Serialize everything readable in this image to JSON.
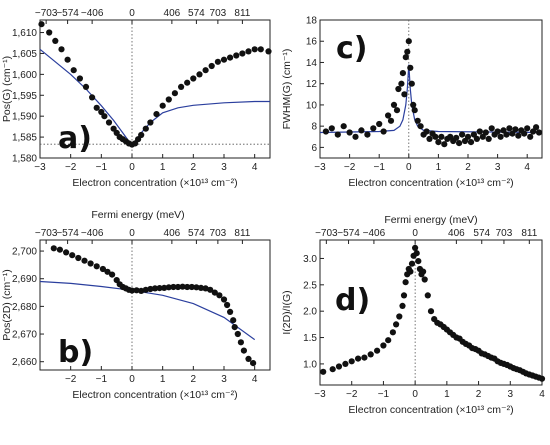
{
  "chart_data": [
    {
      "id": "a",
      "type": "scatter",
      "panel_label": "a)",
      "xlabel": "Electron concentration (×10¹³ cm⁻²)",
      "ylabel": "Pos(G) (cm⁻¹)",
      "top_xlabel": "",
      "xlim": [
        -3,
        4.5
      ],
      "ylim": [
        1580,
        1613
      ],
      "xticks": [
        -3,
        -2,
        -1,
        0,
        1,
        2,
        3,
        4
      ],
      "yticks": [
        1580,
        1585,
        1590,
        1595,
        1600,
        1605,
        1610
      ],
      "ytick_labels": [
        "1,580",
        "1,585",
        "1,590",
        "1,595",
        "1,600",
        "1,605",
        "1,610"
      ],
      "top_ticks": [
        -2.8,
        -2.1,
        -1.3,
        0,
        1.3,
        2.1,
        2.8,
        3.6
      ],
      "top_tick_labels": [
        "−703",
        "−574",
        "−406",
        "0",
        "406",
        "574",
        "703",
        "811"
      ],
      "vline_x": 0,
      "hline_y": 1583.3,
      "points": [
        [
          -2.95,
          1612
        ],
        [
          -2.7,
          1610
        ],
        [
          -2.5,
          1608
        ],
        [
          -2.3,
          1606
        ],
        [
          -2.1,
          1603.5
        ],
        [
          -1.9,
          1601
        ],
        [
          -1.7,
          1599
        ],
        [
          -1.5,
          1597
        ],
        [
          -1.3,
          1594.5
        ],
        [
          -1.15,
          1592
        ],
        [
          -1.0,
          1591
        ],
        [
          -0.9,
          1590
        ],
        [
          -0.75,
          1588.5
        ],
        [
          -0.6,
          1587
        ],
        [
          -0.5,
          1586
        ],
        [
          -0.4,
          1585
        ],
        [
          -0.3,
          1584.5
        ],
        [
          -0.2,
          1584
        ],
        [
          -0.1,
          1583.5
        ],
        [
          0.0,
          1583.2
        ],
        [
          0.1,
          1583.5
        ],
        [
          0.2,
          1584.5
        ],
        [
          0.3,
          1585.5
        ],
        [
          0.45,
          1587
        ],
        [
          0.6,
          1588.5
        ],
        [
          0.8,
          1590.5
        ],
        [
          1.0,
          1592.5
        ],
        [
          1.2,
          1594
        ],
        [
          1.4,
          1595.5
        ],
        [
          1.6,
          1597
        ],
        [
          1.8,
          1598
        ],
        [
          2.0,
          1599
        ],
        [
          2.2,
          1600
        ],
        [
          2.4,
          1601
        ],
        [
          2.6,
          1602
        ],
        [
          2.8,
          1603
        ],
        [
          3.0,
          1603.5
        ],
        [
          3.2,
          1604
        ],
        [
          3.4,
          1604.5
        ],
        [
          3.6,
          1605
        ],
        [
          3.8,
          1605.5
        ],
        [
          4.0,
          1606
        ],
        [
          4.2,
          1606
        ],
        [
          4.45,
          1605.5
        ]
      ],
      "line": [
        [
          -3.0,
          1606
        ],
        [
          -2.5,
          1603
        ],
        [
          -2.0,
          1600
        ],
        [
          -1.5,
          1596.5
        ],
        [
          -1.0,
          1592.5
        ],
        [
          -0.6,
          1589
        ],
        [
          -0.3,
          1586
        ],
        [
          -0.1,
          1584
        ],
        [
          0.0,
          1583.2
        ],
        [
          0.1,
          1584
        ],
        [
          0.3,
          1586
        ],
        [
          0.6,
          1588.5
        ],
        [
          1.0,
          1590.8
        ],
        [
          1.5,
          1592
        ],
        [
          2.0,
          1592.6
        ],
        [
          3.0,
          1593.2
        ],
        [
          4.0,
          1593.5
        ],
        [
          4.5,
          1593.5
        ]
      ],
      "marker_color": "#111111",
      "line_color": "#2b3f9e"
    },
    {
      "id": "c",
      "type": "scatter",
      "panel_label": "c)",
      "xlabel": "Electron concentration (×10¹³ cm⁻²)",
      "ylabel": "FWHM(G) (cm⁻¹)",
      "top_xlabel": "",
      "xlim": [
        -3,
        4.5
      ],
      "ylim": [
        5,
        18
      ],
      "xticks": [
        -3,
        -2,
        -1,
        0,
        1,
        2,
        3,
        4
      ],
      "yticks": [
        6,
        8,
        10,
        12,
        14,
        16,
        18
      ],
      "ytick_labels": [
        "6",
        "8",
        "10",
        "12",
        "14",
        "16",
        "18"
      ],
      "top_ticks": [],
      "top_tick_labels": [],
      "vline_x": 0,
      "hline_y": null,
      "points": [
        [
          -2.8,
          7.5
        ],
        [
          -2.6,
          7.8
        ],
        [
          -2.4,
          7.2
        ],
        [
          -2.2,
          8.0
        ],
        [
          -2.0,
          7.4
        ],
        [
          -1.8,
          7.0
        ],
        [
          -1.6,
          7.6
        ],
        [
          -1.4,
          7.2
        ],
        [
          -1.2,
          7.8
        ],
        [
          -1.0,
          8.2
        ],
        [
          -0.85,
          7.5
        ],
        [
          -0.7,
          9.0
        ],
        [
          -0.6,
          8.5
        ],
        [
          -0.5,
          10.0
        ],
        [
          -0.4,
          9.5
        ],
        [
          -0.35,
          11.5
        ],
        [
          -0.25,
          12.0
        ],
        [
          -0.2,
          13.0
        ],
        [
          -0.15,
          11.0
        ],
        [
          -0.1,
          14.5
        ],
        [
          -0.05,
          15.0
        ],
        [
          0.0,
          16.0
        ],
        [
          0.05,
          13.5
        ],
        [
          0.1,
          12.0
        ],
        [
          0.15,
          10.0
        ],
        [
          0.2,
          9.5
        ],
        [
          0.3,
          8.5
        ],
        [
          0.4,
          8.0
        ],
        [
          0.5,
          7.2
        ],
        [
          0.6,
          7.5
        ],
        [
          0.7,
          6.8
        ],
        [
          0.8,
          7.3
        ],
        [
          0.9,
          7.0
        ],
        [
          1.0,
          6.5
        ],
        [
          1.1,
          7.0
        ],
        [
          1.2,
          6.3
        ],
        [
          1.3,
          6.8
        ],
        [
          1.4,
          7.0
        ],
        [
          1.5,
          6.6
        ],
        [
          1.6,
          6.9
        ],
        [
          1.7,
          6.4
        ],
        [
          1.8,
          7.2
        ],
        [
          1.9,
          6.6
        ],
        [
          2.0,
          7.0
        ],
        [
          2.1,
          6.5
        ],
        [
          2.2,
          7.2
        ],
        [
          2.3,
          6.8
        ],
        [
          2.4,
          7.5
        ],
        [
          2.5,
          7.0
        ],
        [
          2.6,
          7.4
        ],
        [
          2.7,
          6.8
        ],
        [
          2.8,
          7.8
        ],
        [
          2.9,
          7.2
        ],
        [
          3.0,
          7.5
        ],
        [
          3.1,
          7.0
        ],
        [
          3.2,
          7.6
        ],
        [
          3.3,
          7.2
        ],
        [
          3.4,
          7.8
        ],
        [
          3.5,
          7.3
        ],
        [
          3.6,
          7.7
        ],
        [
          3.7,
          7.1
        ],
        [
          3.8,
          7.6
        ],
        [
          3.9,
          7.3
        ],
        [
          4.0,
          7.8
        ],
        [
          4.1,
          7.0
        ],
        [
          4.2,
          7.5
        ],
        [
          4.3,
          7.9
        ],
        [
          4.4,
          7.4
        ]
      ],
      "line": [
        [
          -3.0,
          7.4
        ],
        [
          -1.0,
          7.5
        ],
        [
          -0.5,
          7.6
        ],
        [
          -0.3,
          8.0
        ],
        [
          -0.2,
          8.6
        ],
        [
          -0.1,
          10.0
        ],
        [
          -0.05,
          11.5
        ],
        [
          0.0,
          13.8
        ],
        [
          0.05,
          11.5
        ],
        [
          0.1,
          10.0
        ],
        [
          0.2,
          8.6
        ],
        [
          0.3,
          8.0
        ],
        [
          0.5,
          7.6
        ],
        [
          1.0,
          7.5
        ],
        [
          4.5,
          7.4
        ]
      ],
      "marker_color": "#111111",
      "line_color": "#2b3f9e"
    },
    {
      "id": "b",
      "type": "scatter",
      "panel_label": "b)",
      "xlabel": "Electron concentration (×10¹³ cm⁻²)",
      "ylabel": "Pos(2D) (cm⁻¹)",
      "top_xlabel": "Fermi energy (meV)",
      "xlim": [
        -3,
        4.5
      ],
      "ylim": [
        2657,
        2704
      ],
      "xticks": [
        -2,
        -1,
        0,
        1,
        2,
        3,
        4
      ],
      "yticks": [
        2660,
        2670,
        2680,
        2690,
        2700
      ],
      "ytick_labels": [
        "2,660",
        "2,670",
        "2,680",
        "2,690",
        "2,700"
      ],
      "top_ticks": [
        -2.8,
        -2.1,
        -1.3,
        0,
        1.3,
        2.1,
        2.8,
        3.6
      ],
      "top_tick_labels": [
        "−703",
        "−574",
        "−406",
        "0",
        "406",
        "574",
        "703",
        "811"
      ],
      "vline_x": 0,
      "hline_y": null,
      "points": [
        [
          -2.55,
          2701
        ],
        [
          -2.35,
          2700.5
        ],
        [
          -2.15,
          2699.5
        ],
        [
          -1.95,
          2698.5
        ],
        [
          -1.75,
          2697.5
        ],
        [
          -1.55,
          2696.5
        ],
        [
          -1.35,
          2695.5
        ],
        [
          -1.15,
          2694.5
        ],
        [
          -0.95,
          2693.5
        ],
        [
          -0.8,
          2692.5
        ],
        [
          -0.65,
          2691.5
        ],
        [
          -0.5,
          2689.5
        ],
        [
          -0.4,
          2688
        ],
        [
          -0.3,
          2687
        ],
        [
          -0.2,
          2686.5
        ],
        [
          -0.1,
          2686
        ],
        [
          0.0,
          2685.7
        ],
        [
          0.15,
          2685.8
        ],
        [
          0.3,
          2685.6
        ],
        [
          0.45,
          2686
        ],
        [
          0.6,
          2686.3
        ],
        [
          0.75,
          2686.5
        ],
        [
          0.9,
          2686.6
        ],
        [
          1.05,
          2686.7
        ],
        [
          1.2,
          2686.9
        ],
        [
          1.35,
          2687
        ],
        [
          1.5,
          2687
        ],
        [
          1.65,
          2687.1
        ],
        [
          1.8,
          2687
        ],
        [
          1.95,
          2687
        ],
        [
          2.1,
          2686.9
        ],
        [
          2.25,
          2686.7
        ],
        [
          2.4,
          2686.5
        ],
        [
          2.55,
          2686
        ],
        [
          2.7,
          2685
        ],
        [
          2.85,
          2684
        ],
        [
          3.0,
          2682.5
        ],
        [
          3.1,
          2680.5
        ],
        [
          3.2,
          2678
        ],
        [
          3.3,
          2675
        ],
        [
          3.35,
          2672.5
        ],
        [
          3.45,
          2670
        ],
        [
          3.55,
          2667
        ],
        [
          3.65,
          2664
        ],
        [
          3.8,
          2661
        ],
        [
          3.95,
          2659.5
        ]
      ],
      "line": [
        [
          -3.0,
          2689
        ],
        [
          -2.0,
          2688.3
        ],
        [
          -1.0,
          2687.2
        ],
        [
          0.0,
          2685.8
        ],
        [
          1.0,
          2684
        ],
        [
          2.0,
          2681
        ],
        [
          3.0,
          2676
        ],
        [
          4.0,
          2668
        ]
      ],
      "marker_color": "#111111",
      "line_color": "#2b3f9e"
    },
    {
      "id": "d",
      "type": "scatter",
      "panel_label": "d)",
      "xlabel": "Electron concentration (×10¹³ cm⁻²)",
      "ylabel": "I(2D)/I(G)",
      "top_xlabel": "Fermi energy (meV)",
      "xlim": [
        -3,
        4
      ],
      "ylim": [
        0.6,
        3.35
      ],
      "xticks": [
        -3,
        -2,
        -1,
        0,
        1,
        2,
        3,
        4
      ],
      "yticks": [
        1.0,
        1.5,
        2.0,
        2.5,
        3.0
      ],
      "ytick_labels": [
        "1.0",
        "1.5",
        "2.0",
        "2.5",
        "3.0"
      ],
      "top_ticks": [
        -2.8,
        -2.1,
        -1.3,
        0,
        1.3,
        2.1,
        2.8,
        3.6
      ],
      "top_tick_labels": [
        "−703",
        "−574",
        "−406",
        "0",
        "406",
        "574",
        "703",
        "811"
      ],
      "vline_x": 0,
      "hline_y": null,
      "points": [
        [
          -2.9,
          0.85
        ],
        [
          -2.6,
          0.9
        ],
        [
          -2.4,
          0.95
        ],
        [
          -2.2,
          1.0
        ],
        [
          -2.0,
          1.05
        ],
        [
          -1.8,
          1.1
        ],
        [
          -1.6,
          1.12
        ],
        [
          -1.4,
          1.18
        ],
        [
          -1.2,
          1.25
        ],
        [
          -1.0,
          1.35
        ],
        [
          -0.85,
          1.45
        ],
        [
          -0.7,
          1.6
        ],
        [
          -0.6,
          1.75
        ],
        [
          -0.5,
          1.9
        ],
        [
          -0.4,
          2.1
        ],
        [
          -0.35,
          2.3
        ],
        [
          -0.3,
          2.55
        ],
        [
          -0.25,
          2.7
        ],
        [
          -0.2,
          2.8
        ],
        [
          -0.15,
          2.75
        ],
        [
          -0.1,
          2.9
        ],
        [
          -0.05,
          3.05
        ],
        [
          0.0,
          3.2
        ],
        [
          0.05,
          3.1
        ],
        [
          0.1,
          2.95
        ],
        [
          0.15,
          2.8
        ],
        [
          0.2,
          2.7
        ],
        [
          0.25,
          2.75
        ],
        [
          0.3,
          2.6
        ],
        [
          0.4,
          2.3
        ],
        [
          0.5,
          2.0
        ],
        [
          0.6,
          1.85
        ],
        [
          0.7,
          1.78
        ],
        [
          0.8,
          1.75
        ],
        [
          0.9,
          1.7
        ],
        [
          1.0,
          1.65
        ],
        [
          1.1,
          1.6
        ],
        [
          1.2,
          1.55
        ],
        [
          1.3,
          1.5
        ],
        [
          1.4,
          1.48
        ],
        [
          1.5,
          1.42
        ],
        [
          1.6,
          1.38
        ],
        [
          1.7,
          1.35
        ],
        [
          1.8,
          1.3
        ],
        [
          1.9,
          1.28
        ],
        [
          2.0,
          1.25
        ],
        [
          2.1,
          1.2
        ],
        [
          2.2,
          1.18
        ],
        [
          2.3,
          1.15
        ],
        [
          2.4,
          1.12
        ],
        [
          2.5,
          1.1
        ],
        [
          2.6,
          1.05
        ],
        [
          2.7,
          1.02
        ],
        [
          2.8,
          1.0
        ],
        [
          2.9,
          0.98
        ],
        [
          3.0,
          0.95
        ],
        [
          3.1,
          0.92
        ],
        [
          3.2,
          0.9
        ],
        [
          3.3,
          0.88
        ],
        [
          3.4,
          0.85
        ],
        [
          3.5,
          0.82
        ],
        [
          3.6,
          0.8
        ],
        [
          3.7,
          0.78
        ],
        [
          3.8,
          0.76
        ],
        [
          3.9,
          0.74
        ],
        [
          4.0,
          0.72
        ]
      ],
      "line": [],
      "marker_color": "#111111",
      "line_color": "#2b3f9e"
    }
  ],
  "shared_labels": {
    "fermi_energy_mid": "Fermi energy (meV)"
  }
}
